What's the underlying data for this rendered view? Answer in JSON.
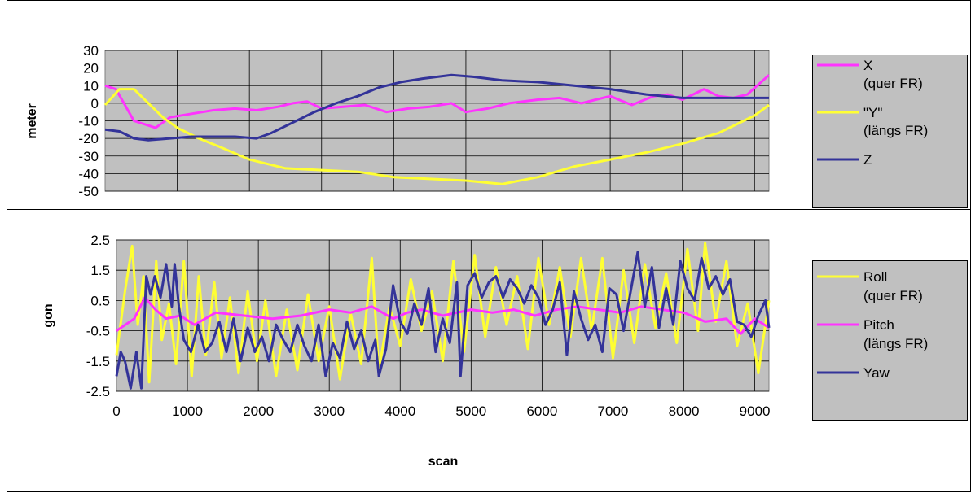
{
  "colors": {
    "plot_background": "#c0c0c0",
    "magenta": "#ff33ff",
    "yellow": "#ffff33",
    "navy": "#333399",
    "grid": "#000000"
  },
  "chart_data": [
    {
      "type": "line",
      "title": "",
      "xlabel": "",
      "ylabel": "meter",
      "xlim": [
        0,
        9200
      ],
      "ylim": [
        -50,
        30
      ],
      "yticks": [
        30,
        20,
        10,
        0,
        -10,
        -20,
        -30,
        -40,
        -50
      ],
      "grid": true,
      "legend_position": "right",
      "series": [
        {
          "name_lines": [
            "X",
            "(quer FR)"
          ],
          "color": "#ff33ff",
          "x": [
            0,
            150,
            400,
            700,
            900,
            1200,
            1500,
            1800,
            2100,
            2400,
            2600,
            2800,
            3000,
            3300,
            3600,
            3900,
            4200,
            4500,
            4800,
            5000,
            5300,
            5600,
            6000,
            6300,
            6600,
            6800,
            7000,
            7300,
            7600,
            7800,
            8000,
            8300,
            8500,
            8700,
            8900,
            9200
          ],
          "y": [
            10,
            8,
            -10,
            -14,
            -8,
            -6,
            -4,
            -3,
            -4,
            -2,
            0,
            1,
            -3,
            -2,
            -1,
            -5,
            -3,
            -2,
            0,
            -5,
            -3,
            0,
            2,
            3,
            0,
            2,
            4,
            -1,
            4,
            5,
            2,
            8,
            4,
            3,
            5,
            16
          ]
        },
        {
          "name_lines": [
            "\"Y\"",
            "(längs FR)"
          ],
          "color": "#ffff33",
          "x": [
            0,
            200,
            400,
            600,
            800,
            1000,
            1300,
            1600,
            2000,
            2500,
            3000,
            3500,
            4000,
            4500,
            5000,
            5500,
            6000,
            6500,
            7000,
            7500,
            8000,
            8500,
            9000,
            9200
          ],
          "y": [
            -1,
            8,
            8,
            0,
            -8,
            -14,
            -20,
            -25,
            -32,
            -37,
            -38,
            -39,
            -42,
            -43,
            -44,
            -46,
            -42,
            -36,
            -32,
            -28,
            -23,
            -17,
            -7,
            -1
          ]
        },
        {
          "name_lines": [
            "Z"
          ],
          "color": "#333399",
          "x": [
            0,
            200,
            400,
            600,
            900,
            1200,
            1500,
            1800,
            2100,
            2300,
            2600,
            2900,
            3200,
            3500,
            3800,
            4100,
            4400,
            4800,
            5100,
            5500,
            6000,
            6500,
            7000,
            7500,
            8000,
            8500,
            9000,
            9200
          ],
          "y": [
            -15,
            -16,
            -20,
            -21,
            -20,
            -19,
            -19,
            -19,
            -20,
            -17,
            -11,
            -5,
            0,
            4,
            9,
            12,
            14,
            16,
            15,
            13,
            12,
            10,
            8,
            5,
            3,
            3,
            3,
            3
          ]
        }
      ]
    },
    {
      "type": "line",
      "title": "",
      "xlabel": "scan",
      "ylabel": "gon",
      "xlim": [
        0,
        9200
      ],
      "ylim": [
        -2.5,
        2.5
      ],
      "xticks": [
        "0",
        "1000",
        "2000",
        "3000",
        "4000",
        "5000",
        "6000",
        "7000",
        "8000",
        "9000"
      ],
      "yticks": [
        "2.5",
        "1.5",
        "0.5",
        "-0.5",
        "-1.5",
        "-2.5"
      ],
      "grid": true,
      "legend_position": "right",
      "series": [
        {
          "name_lines": [
            "Roll",
            "(quer FR)"
          ],
          "color": "#ffff33",
          "x": [
            0,
            120,
            220,
            300,
            380,
            460,
            560,
            640,
            740,
            840,
            950,
            1060,
            1160,
            1260,
            1380,
            1480,
            1600,
            1720,
            1850,
            1980,
            2100,
            2250,
            2400,
            2550,
            2700,
            2850,
            3000,
            3150,
            3300,
            3450,
            3600,
            3700,
            3850,
            4000,
            4150,
            4300,
            4450,
            4600,
            4750,
            4900,
            5050,
            5200,
            5350,
            5500,
            5650,
            5800,
            5950,
            6100,
            6250,
            6400,
            6550,
            6700,
            6850,
            7000,
            7150,
            7300,
            7450,
            7600,
            7750,
            7900,
            8050,
            8200,
            8300,
            8450,
            8600,
            8750,
            8900,
            9050,
            9200
          ],
          "y": [
            -1.3,
            0.8,
            2.3,
            -0.3,
            1.3,
            -2.2,
            1.8,
            -0.8,
            0.4,
            -1.6,
            1.8,
            -2.0,
            1.3,
            -1.3,
            1.1,
            -1.4,
            0.6,
            -1.9,
            0.8,
            -1.5,
            0.5,
            -2.0,
            0.2,
            -1.8,
            0.7,
            -1.5,
            0.3,
            -2.1,
            0.1,
            -1.6,
            1.9,
            -1.8,
            0.3,
            -1.0,
            1.2,
            -0.5,
            0.8,
            -1.5,
            1.8,
            -1.2,
            2.0,
            -0.7,
            1.6,
            -0.3,
            1.3,
            -1.1,
            1.9,
            -0.3,
            1.6,
            -0.7,
            1.9,
            -0.5,
            1.9,
            -1.4,
            1.5,
            -0.9,
            1.7,
            -0.4,
            1.4,
            -0.9,
            2.2,
            -0.5,
            2.4,
            -0.2,
            1.8,
            -1.0,
            0.4,
            -1.9,
            0.5
          ],
          "smooth": false
        },
        {
          "name_lines": [
            "Pitch",
            "(längs FR)"
          ],
          "color": "#ff33ff",
          "x": [
            0,
            250,
            400,
            550,
            700,
            900,
            1100,
            1400,
            1800,
            2200,
            2600,
            3000,
            3300,
            3600,
            3900,
            4100,
            4300,
            4600,
            5000,
            5300,
            5600,
            5900,
            6200,
            6500,
            6800,
            7100,
            7400,
            7700,
            8000,
            8300,
            8600,
            8800,
            9000,
            9200
          ],
          "y": [
            -0.5,
            -0.1,
            0.6,
            0.2,
            -0.1,
            0.0,
            -0.3,
            0.1,
            0.0,
            -0.1,
            0.0,
            0.2,
            0.1,
            0.3,
            -0.1,
            0.1,
            0.2,
            0.0,
            0.2,
            0.1,
            0.2,
            0.0,
            0.2,
            0.3,
            0.2,
            0.1,
            0.3,
            0.2,
            0.1,
            -0.2,
            -0.1,
            -0.6,
            -0.1,
            -0.4
          ]
        },
        {
          "name_lines": [
            "Yaw"
          ],
          "color": "#333399",
          "x": [
            0,
            60,
            120,
            200,
            280,
            350,
            420,
            480,
            540,
            620,
            700,
            780,
            820,
            880,
            950,
            1050,
            1150,
            1250,
            1350,
            1450,
            1550,
            1650,
            1750,
            1850,
            1950,
            2050,
            2150,
            2250,
            2350,
            2450,
            2550,
            2650,
            2750,
            2850,
            2950,
            3050,
            3150,
            3250,
            3350,
            3450,
            3550,
            3650,
            3700,
            3800,
            3900,
            4000,
            4100,
            4200,
            4300,
            4400,
            4500,
            4600,
            4700,
            4800,
            4850,
            4950,
            5050,
            5150,
            5250,
            5350,
            5450,
            5550,
            5650,
            5750,
            5850,
            5950,
            6050,
            6150,
            6250,
            6350,
            6450,
            6550,
            6650,
            6750,
            6850,
            6950,
            7050,
            7150,
            7250,
            7350,
            7450,
            7550,
            7650,
            7750,
            7850,
            7950,
            8050,
            8150,
            8250,
            8350,
            8450,
            8550,
            8650,
            8750,
            8850,
            8950,
            9050,
            9150,
            9200
          ],
          "y": [
            -2.0,
            -1.2,
            -1.5,
            -2.4,
            -1.2,
            -2.4,
            1.3,
            0.7,
            1.3,
            0.6,
            1.7,
            0.3,
            1.7,
            0.3,
            -0.8,
            -1.2,
            -0.3,
            -1.2,
            -0.9,
            -0.2,
            -1.2,
            -0.1,
            -1.5,
            -0.4,
            -1.2,
            -0.7,
            -1.5,
            -0.3,
            -0.8,
            -1.2,
            -0.3,
            -1.0,
            -1.5,
            -0.3,
            -2.0,
            -0.9,
            -1.4,
            -0.2,
            -1.1,
            -0.5,
            -1.5,
            -0.8,
            -2.0,
            -1.1,
            1.0,
            -0.2,
            -0.6,
            0.4,
            -0.3,
            0.9,
            -1.2,
            -0.1,
            -0.9,
            1.1,
            -2.0,
            1.0,
            1.4,
            0.6,
            1.1,
            1.3,
            0.6,
            1.2,
            0.9,
            0.4,
            1.0,
            0.6,
            -0.3,
            0.2,
            1.1,
            -1.3,
            0.8,
            -0.1,
            -0.8,
            -0.3,
            -1.2,
            0.9,
            0.7,
            -0.5,
            0.8,
            2.1,
            0.3,
            1.6,
            -0.4,
            0.9,
            -0.3,
            1.8,
            0.9,
            0.5,
            1.9,
            0.9,
            1.3,
            0.7,
            1.2,
            -0.2,
            -0.3,
            -0.7,
            0.0,
            0.5,
            -0.4
          ]
        }
      ]
    }
  ]
}
